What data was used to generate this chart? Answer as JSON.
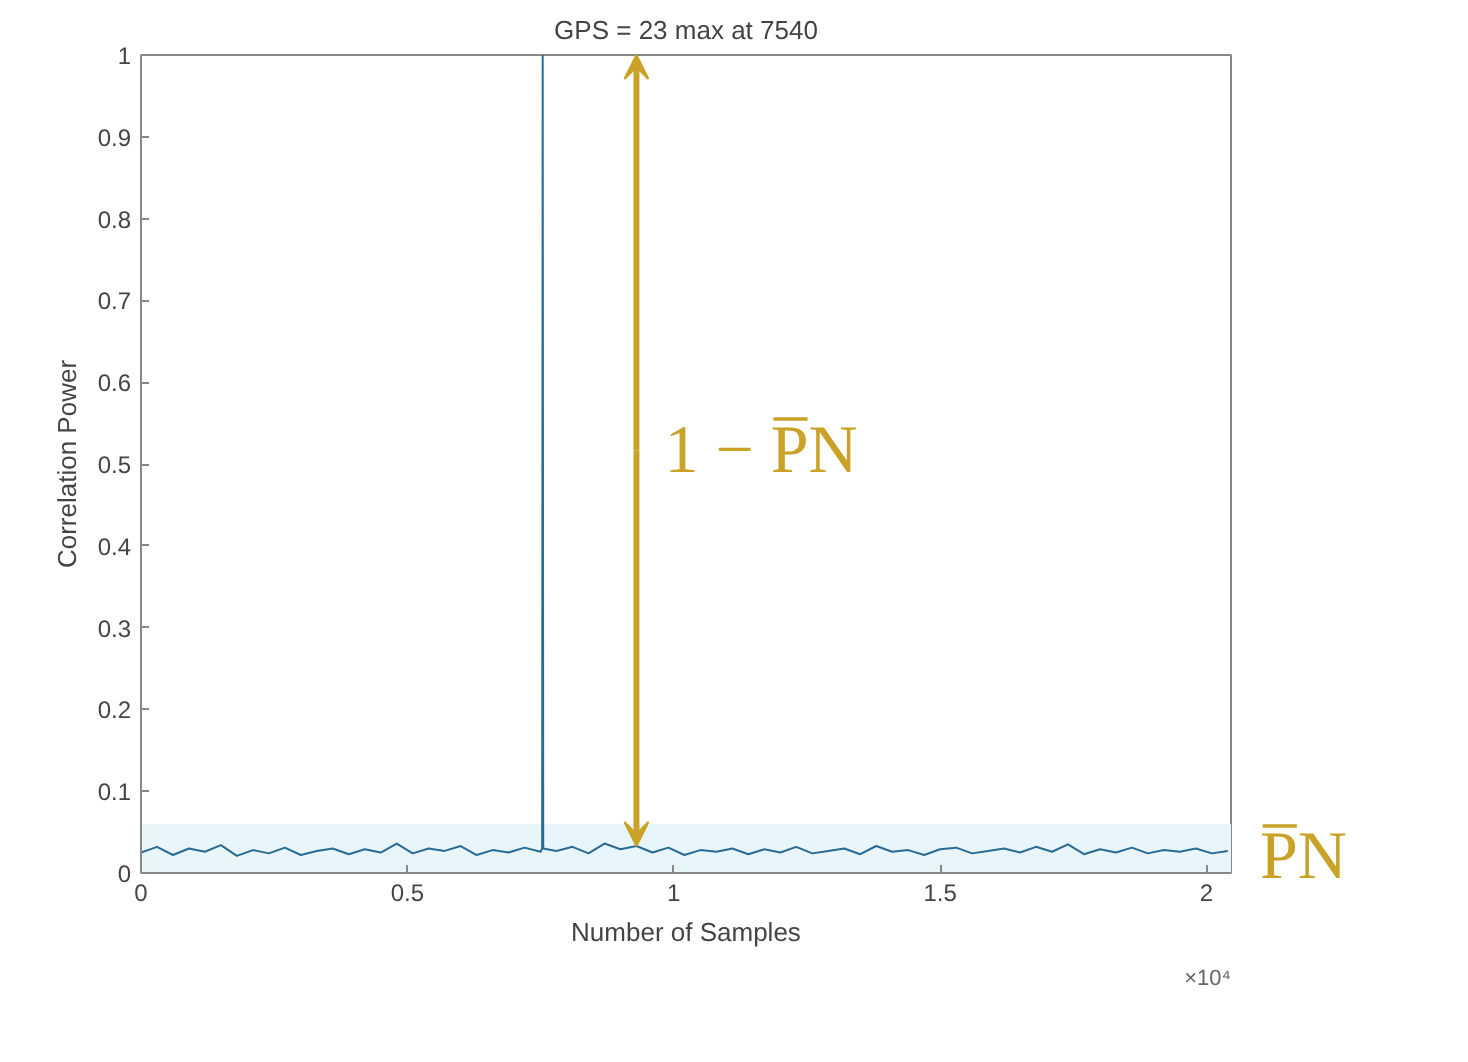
{
  "chart_data": {
    "type": "line",
    "title": "GPS = 23 max at 7540",
    "xlabel": "Number of Samples",
    "ylabel": "Correlation Power",
    "x": [
      0,
      0.03,
      0.06,
      0.09,
      0.12,
      0.15,
      0.18,
      0.21,
      0.24,
      0.27,
      0.3,
      0.33,
      0.36,
      0.39,
      0.42,
      0.45,
      0.48,
      0.51,
      0.54,
      0.57,
      0.6,
      0.63,
      0.66,
      0.69,
      0.72,
      0.75,
      0.753,
      0.754,
      0.755,
      0.78,
      0.81,
      0.84,
      0.87,
      0.9,
      0.93,
      0.96,
      0.99,
      1.02,
      1.05,
      1.08,
      1.11,
      1.14,
      1.17,
      1.2,
      1.23,
      1.26,
      1.29,
      1.32,
      1.35,
      1.38,
      1.41,
      1.44,
      1.47,
      1.5,
      1.53,
      1.56,
      1.59,
      1.62,
      1.65,
      1.68,
      1.71,
      1.74,
      1.77,
      1.8,
      1.83,
      1.86,
      1.89,
      1.92,
      1.95,
      1.98,
      2.01,
      2.04
    ],
    "series": [
      {
        "color": "#2b6a94",
        "values": [
          0.025,
          0.032,
          0.022,
          0.03,
          0.026,
          0.034,
          0.021,
          0.028,
          0.024,
          0.031,
          0.022,
          0.027,
          0.03,
          0.023,
          0.029,
          0.025,
          0.036,
          0.024,
          0.03,
          0.027,
          0.033,
          0.022,
          0.028,
          0.025,
          0.031,
          0.026,
          0.03,
          1,
          0.03,
          0.027,
          0.032,
          0.024,
          0.036,
          0.029,
          0.033,
          0.025,
          0.031,
          0.022,
          0.028,
          0.026,
          0.03,
          0.023,
          0.029,
          0.025,
          0.032,
          0.024,
          0.027,
          0.03,
          0.023,
          0.033,
          0.026,
          0.028,
          0.022,
          0.029,
          0.031,
          0.024,
          0.027,
          0.03,
          0.025,
          0.032,
          0.026,
          0.035,
          0.023,
          0.029,
          0.025,
          0.031,
          0.024,
          0.028,
          0.026,
          0.03,
          0.024,
          0.027
        ]
      }
    ],
    "xlim": [
      0,
      2.046
    ],
    "ylim": [
      0,
      1
    ],
    "xticks": [
      0,
      0.5,
      1,
      1.5,
      2
    ],
    "yticks": [
      0,
      0.1,
      0.2,
      0.3,
      0.4,
      0.5,
      0.6,
      0.7,
      0.8,
      0.9,
      1
    ],
    "bands": [
      {
        "axis": "y",
        "from": 0,
        "to": 0.06,
        "color": "#e8f6fb"
      }
    ],
    "annotations": [
      "×10⁴",
      {
        "text": "1 − P̅N",
        "x": 0.93,
        "y": 0.033
      },
      "P̅N"
    ],
    "grid": false
  }
}
